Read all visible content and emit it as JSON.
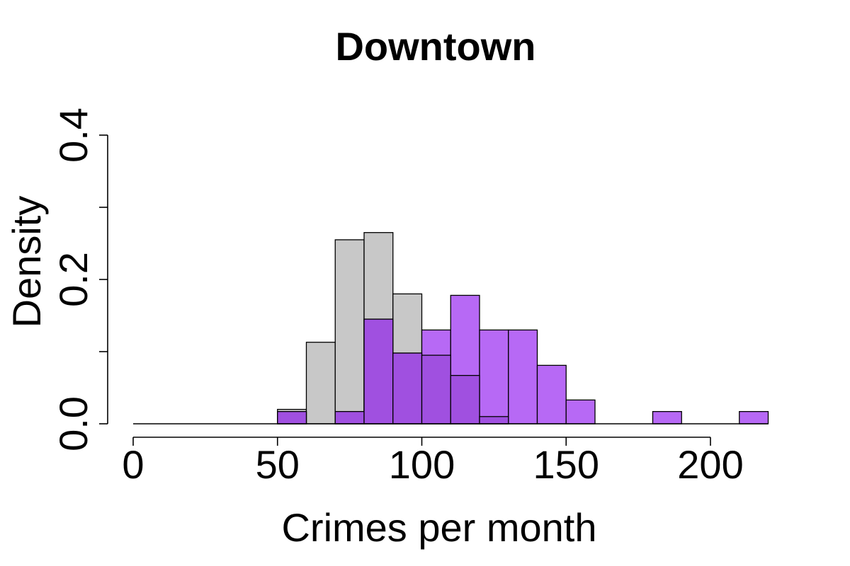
{
  "chart_data": {
    "type": "bar",
    "title": "Downtown",
    "xlabel": "Crimes per month",
    "ylabel": "Density",
    "xlim": [
      0,
      220
    ],
    "ylim": [
      0,
      0.4
    ],
    "x_ticks": [
      0,
      50,
      100,
      150,
      200
    ],
    "x_tick_labels": [
      "0",
      "50",
      "100",
      "150",
      "200"
    ],
    "y_ticks": [
      0,
      0.1,
      0.2,
      0.3,
      0.4
    ],
    "y_tick_labels": [
      "0.0",
      "",
      "0.2",
      "",
      "0.4"
    ],
    "grid": false,
    "bin_width": 10,
    "colors": {
      "gray": "#c8c8c8",
      "purple": "#b769f5",
      "overlap": "#a050e0"
    },
    "series": [
      {
        "color_key": "gray",
        "bins": [
          {
            "x0": 0,
            "x1": 10,
            "y": 0
          },
          {
            "x0": 10,
            "x1": 20,
            "y": 0
          },
          {
            "x0": 20,
            "x1": 30,
            "y": 0
          },
          {
            "x0": 30,
            "x1": 40,
            "y": 0
          },
          {
            "x0": 40,
            "x1": 50,
            "y": 0
          },
          {
            "x0": 50,
            "x1": 60,
            "y": 0.02
          },
          {
            "x0": 60,
            "x1": 70,
            "y": 0.113
          },
          {
            "x0": 70,
            "x1": 80,
            "y": 0.255
          },
          {
            "x0": 80,
            "x1": 90,
            "y": 0.265
          },
          {
            "x0": 90,
            "x1": 100,
            "y": 0.18
          },
          {
            "x0": 100,
            "x1": 110,
            "y": 0.095
          },
          {
            "x0": 110,
            "x1": 120,
            "y": 0.067
          },
          {
            "x0": 120,
            "x1": 130,
            "y": 0.01
          }
        ]
      },
      {
        "color_key": "purple",
        "bins": [
          {
            "x0": 50,
            "x1": 60,
            "y": 0.017
          },
          {
            "x0": 60,
            "x1": 70,
            "y": 0
          },
          {
            "x0": 70,
            "x1": 80,
            "y": 0.017
          },
          {
            "x0": 80,
            "x1": 90,
            "y": 0.145
          },
          {
            "x0": 90,
            "x1": 100,
            "y": 0.098
          },
          {
            "x0": 100,
            "x1": 110,
            "y": 0.13
          },
          {
            "x0": 110,
            "x1": 120,
            "y": 0.178
          },
          {
            "x0": 120,
            "x1": 130,
            "y": 0.13
          },
          {
            "x0": 130,
            "x1": 140,
            "y": 0.13
          },
          {
            "x0": 140,
            "x1": 150,
            "y": 0.081
          },
          {
            "x0": 150,
            "x1": 160,
            "y": 0.033
          },
          {
            "x0": 160,
            "x1": 170,
            "y": 0
          },
          {
            "x0": 170,
            "x1": 180,
            "y": 0
          },
          {
            "x0": 180,
            "x1": 190,
            "y": 0.017
          },
          {
            "x0": 190,
            "x1": 200,
            "y": 0
          },
          {
            "x0": 200,
            "x1": 210,
            "y": 0
          },
          {
            "x0": 210,
            "x1": 220,
            "y": 0.017
          }
        ]
      }
    ]
  }
}
